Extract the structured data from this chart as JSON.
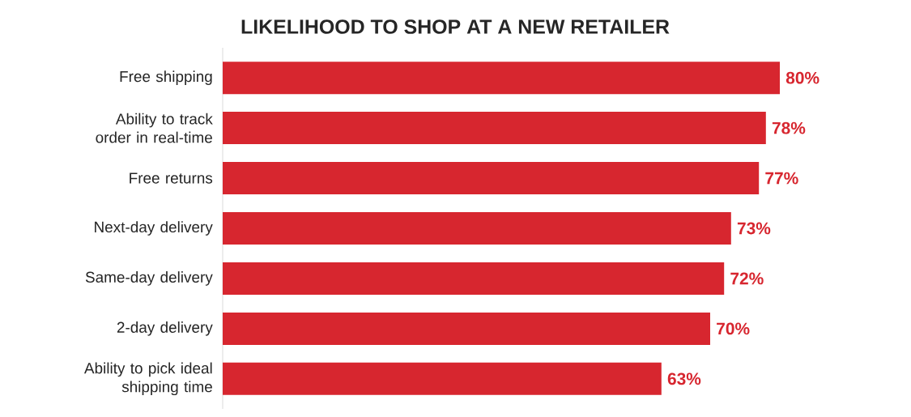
{
  "chart_data": {
    "type": "bar",
    "orientation": "horizontal",
    "title": "LIKELIHOOD TO SHOP AT A NEW RETAILER",
    "categories": [
      "Free shipping",
      "Ability to track order in real-time",
      "Free returns",
      "Next-day delivery",
      "Same-day delivery",
      "2-day delivery",
      "Ability to pick ideal shipping time"
    ],
    "values": [
      80,
      78,
      77,
      73,
      72,
      70,
      63
    ],
    "value_labels": [
      "80%",
      "78%",
      "77%",
      "73%",
      "72%",
      "70%",
      "63%"
    ],
    "color": "#d7262f"
  }
}
